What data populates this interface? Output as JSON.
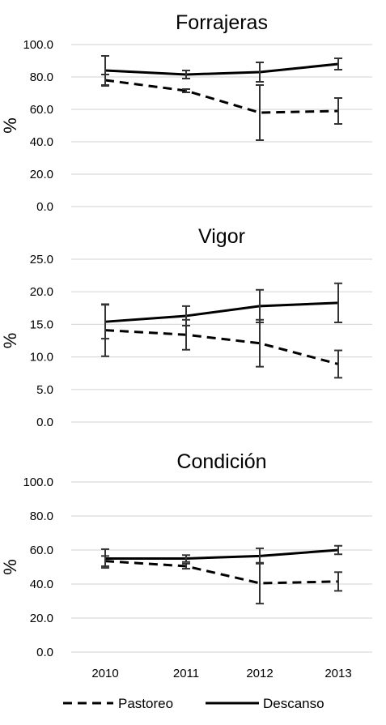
{
  "chart_data": [
    {
      "type": "line",
      "title": "Forrajeras",
      "ylabel": "%",
      "xlabel": "",
      "ylim": [
        0,
        100
      ],
      "yticks": [
        "0.0",
        "20.0",
        "40.0",
        "60.0",
        "80.0",
        "100.0"
      ],
      "categories": [
        "2010",
        "2011",
        "2012",
        "2013"
      ],
      "grid": true,
      "series": [
        {
          "name": "Pastoreo",
          "style": "dashed",
          "values": [
            78,
            71.5,
            58,
            59
          ],
          "err": [
            3.5,
            1,
            17,
            8
          ]
        },
        {
          "name": "Descanso",
          "style": "solid",
          "values": [
            84,
            81.5,
            83,
            88
          ],
          "err": [
            9,
            2.5,
            6,
            3.5
          ]
        }
      ]
    },
    {
      "type": "line",
      "title": "Vigor",
      "ylabel": "%",
      "xlabel": "",
      "ylim": [
        0,
        25
      ],
      "yticks": [
        "0.0",
        "5.0",
        "10.0",
        "15.0",
        "20.0",
        "25.0"
      ],
      "categories": [
        "2010",
        "2011",
        "2012",
        "2013"
      ],
      "grid": true,
      "series": [
        {
          "name": "Pastoreo",
          "style": "dashed",
          "values": [
            14.1,
            13.4,
            12.1,
            8.9
          ],
          "err": [
            4,
            2.3,
            3.6,
            2.1
          ]
        },
        {
          "name": "Descanso",
          "style": "solid",
          "values": [
            15.4,
            16.3,
            17.8,
            18.3
          ],
          "err": [
            2.6,
            1.5,
            2.5,
            3
          ]
        }
      ]
    },
    {
      "type": "line",
      "title": "Condición",
      "ylabel": "%",
      "xlabel": "",
      "ylim": [
        0,
        100
      ],
      "yticks": [
        "0.0",
        "20.0",
        "40.0",
        "60.0",
        "80.0",
        "100.0"
      ],
      "categories": [
        "2010",
        "2011",
        "2012",
        "2013"
      ],
      "grid": true,
      "series": [
        {
          "name": "Pastoreo",
          "style": "dashed",
          "values": [
            53.5,
            50.5,
            40.5,
            41.5
          ],
          "err": [
            3,
            1.5,
            12,
            5.5
          ]
        },
        {
          "name": "Descanso",
          "style": "solid",
          "values": [
            55,
            55,
            56.5,
            60
          ],
          "err": [
            5.5,
            2,
            4.5,
            2.5
          ]
        }
      ]
    }
  ],
  "legend": {
    "position": "bottom",
    "items": [
      {
        "label": "Pastoreo",
        "style": "dashed"
      },
      {
        "label": "Descanso",
        "style": "solid"
      }
    ]
  },
  "colors": {
    "line": "#000000",
    "grid": "#d9d9d9",
    "pastoreo_error": "#000000",
    "descanso_error": "#000000"
  }
}
